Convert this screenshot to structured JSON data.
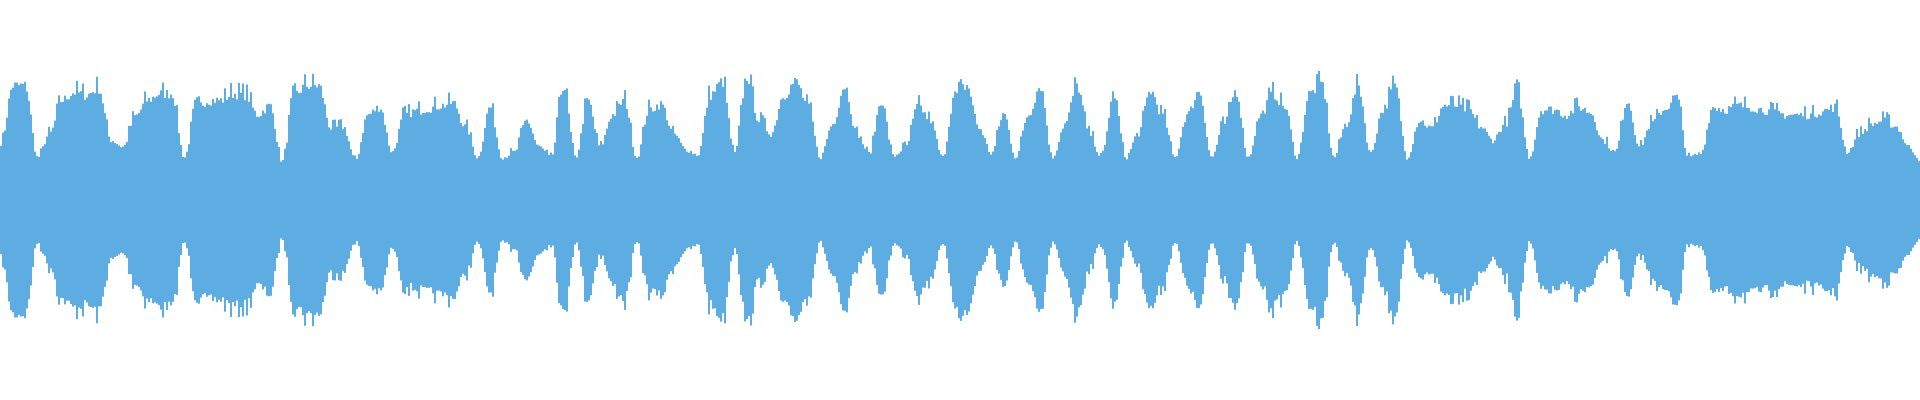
{
  "chart_data": {
    "type": "area",
    "title": "",
    "xlabel": "",
    "ylabel": "",
    "grid": false,
    "legend": "none",
    "color": "#5dade2",
    "ylim": [
      -1,
      1
    ],
    "symmetric": true,
    "envelope": [
      0.43,
      0.86,
      0.86,
      0.32,
      0.5,
      0.75,
      0.81,
      0.79,
      0.84,
      0.45,
      0.4,
      0.63,
      0.75,
      0.8,
      0.8,
      0.32,
      0.7,
      0.75,
      0.75,
      0.8,
      0.79,
      0.64,
      0.71,
      0.29,
      0.79,
      0.86,
      0.86,
      0.54,
      0.55,
      0.3,
      0.64,
      0.7,
      0.36,
      0.64,
      0.67,
      0.69,
      0.71,
      0.73,
      0.55,
      0.32,
      0.7,
      0.32,
      0.36,
      0.6,
      0.4,
      0.32,
      0.86,
      0.32,
      0.75,
      0.4,
      0.64,
      0.75,
      0.32,
      0.68,
      0.72,
      0.5,
      0.38,
      0.34,
      0.79,
      0.89,
      0.35,
      0.93,
      0.6,
      0.5,
      0.79,
      0.89,
      0.71,
      0.32,
      0.57,
      0.86,
      0.5,
      0.35,
      0.75,
      0.33,
      0.4,
      0.71,
      0.6,
      0.32,
      0.79,
      0.86,
      0.54,
      0.35,
      0.65,
      0.32,
      0.64,
      0.86,
      0.32,
      0.57,
      0.86,
      0.5,
      0.32,
      0.8,
      0.32,
      0.5,
      0.82,
      0.64,
      0.32,
      0.64,
      0.82,
      0.32,
      0.57,
      0.82,
      0.32,
      0.64,
      0.8,
      0.7,
      0.32,
      0.8,
      0.88,
      0.32,
      0.57,
      0.86,
      0.35,
      0.68,
      0.86,
      0.32,
      0.6,
      0.54,
      0.71,
      0.71,
      0.68,
      0.55,
      0.45,
      0.57,
      0.82,
      0.32,
      0.68,
      0.68,
      0.64,
      0.7,
      0.66,
      0.45,
      0.36,
      0.75,
      0.4,
      0.58,
      0.68,
      0.78,
      0.32,
      0.35,
      0.7,
      0.68,
      0.71,
      0.7,
      0.68,
      0.66,
      0.64,
      0.64,
      0.64,
      0.67,
      0.7,
      0.36,
      0.5,
      0.57,
      0.6,
      0.55,
      0.4,
      0.3
    ]
  }
}
